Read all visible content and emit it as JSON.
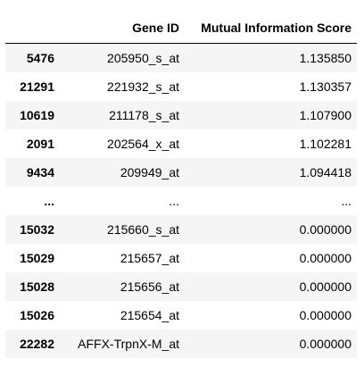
{
  "table": {
    "index_header": "",
    "columns": [
      "Gene ID",
      "Mutual Information Score"
    ],
    "rows": [
      {
        "index": "5476",
        "gene_id": "205950_s_at",
        "score": "1.135850"
      },
      {
        "index": "21291",
        "gene_id": "221932_s_at",
        "score": "1.130357"
      },
      {
        "index": "10619",
        "gene_id": "211178_s_at",
        "score": "1.107900"
      },
      {
        "index": "2091",
        "gene_id": "202564_x_at",
        "score": "1.102281"
      },
      {
        "index": "9434",
        "gene_id": "209949_at",
        "score": "1.094418"
      },
      {
        "index": "...",
        "gene_id": "...",
        "score": "..."
      },
      {
        "index": "15032",
        "gene_id": "215660_s_at",
        "score": "0.000000"
      },
      {
        "index": "15029",
        "gene_id": "215657_at",
        "score": "0.000000"
      },
      {
        "index": "15028",
        "gene_id": "215656_at",
        "score": "0.000000"
      },
      {
        "index": "15026",
        "gene_id": "215654_at",
        "score": "0.000000"
      },
      {
        "index": "22282",
        "gene_id": "AFFX-TrpnX-M_at",
        "score": "0.000000"
      }
    ]
  },
  "colors": {
    "stripe": "#f5f5f5",
    "background": "#ffffff",
    "text": "#000000"
  }
}
